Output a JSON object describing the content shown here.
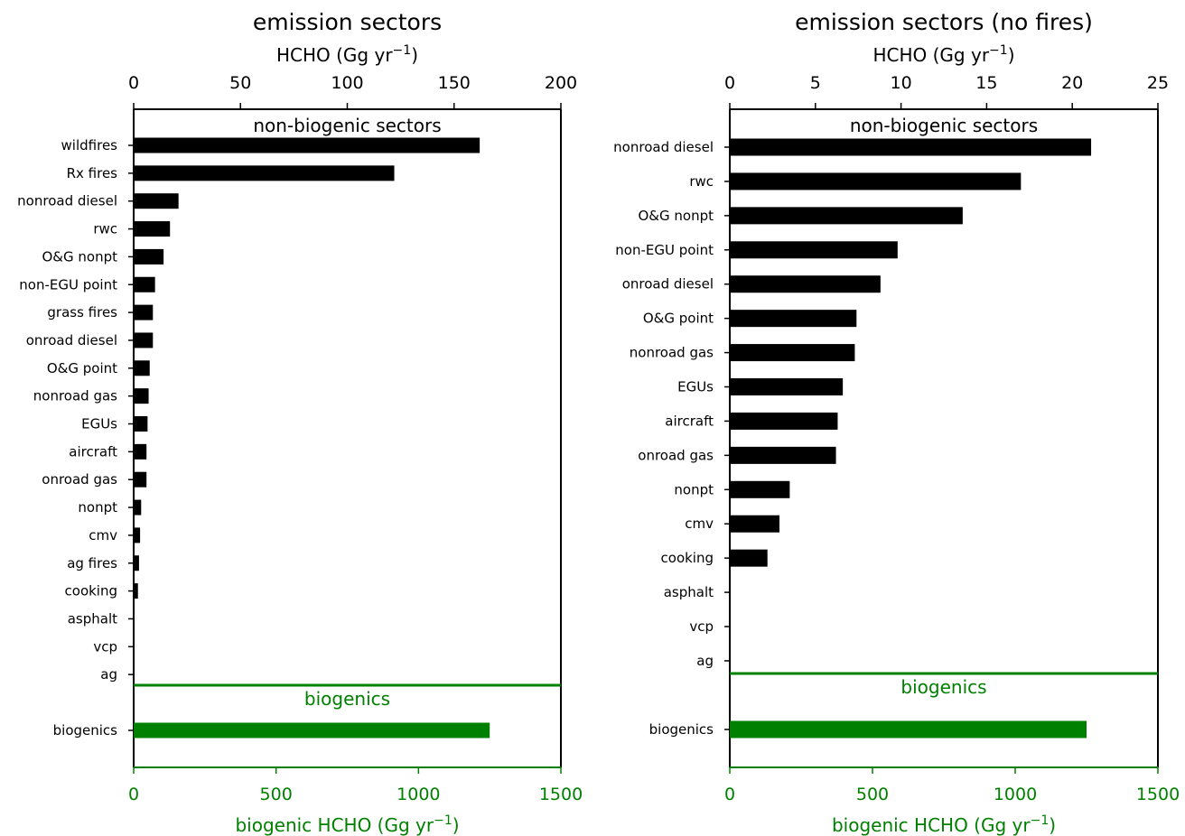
{
  "colors": {
    "bar": "#000000",
    "biogenic": "#008000",
    "axis": "#000000"
  },
  "chart_data": [
    {
      "type": "bar",
      "orientation": "horizontal",
      "title": "emission sectors",
      "top_axis": {
        "label_main": "HCHO (Gg yr",
        "label_sup": "−1",
        "label_end": ")",
        "ticks": [
          0,
          50,
          100,
          150,
          200
        ],
        "xlim": [
          0,
          200
        ]
      },
      "bottom_axis": {
        "label_main": "biogenic HCHO (Gg yr",
        "label_sup": "−1",
        "label_end": ")",
        "ticks": [
          0,
          500,
          1000,
          1500
        ],
        "xlim": [
          0,
          1500
        ]
      },
      "section_label": "non-biogenic sectors",
      "biogenic_label": "biogenics",
      "categories": [
        "wildfires",
        "Rx fires",
        "nonroad diesel",
        "rwc",
        "O&G nonpt",
        "non-EGU point",
        "grass fires",
        "onroad diesel",
        "O&G point",
        "nonroad gas",
        "EGUs",
        "aircraft",
        "onroad gas",
        "nonpt",
        "cmv",
        "ag fires",
        "cooking",
        "asphalt",
        "vcp",
        "ag"
      ],
      "values": [
        162,
        122,
        21,
        17,
        14,
        10,
        9,
        9,
        7.5,
        7,
        6.5,
        6,
        6,
        3.5,
        3,
        2.5,
        2,
        0.2,
        0.2,
        0.2
      ],
      "biogenic": {
        "category": "biogenics",
        "value": 1250
      }
    },
    {
      "type": "bar",
      "orientation": "horizontal",
      "title": "emission sectors (no fires)",
      "top_axis": {
        "label_main": "HCHO (Gg yr",
        "label_sup": "−1",
        "label_end": ")",
        "ticks": [
          0,
          5,
          10,
          15,
          20,
          25
        ],
        "xlim": [
          0,
          25
        ]
      },
      "bottom_axis": {
        "label_main": "biogenic HCHO (Gg yr",
        "label_sup": "−1",
        "label_end": ")",
        "ticks": [
          0,
          500,
          1000,
          1500
        ],
        "xlim": [
          0,
          1500
        ]
      },
      "section_label": "non-biogenic sectors",
      "biogenic_label": "biogenics",
      "categories": [
        "nonroad diesel",
        "rwc",
        "O&G nonpt",
        "non-EGU point",
        "onroad diesel",
        "O&G point",
        "nonroad gas",
        "EGUs",
        "aircraft",
        "onroad gas",
        "nonpt",
        "cmv",
        "cooking",
        "asphalt",
        "vcp",
        "ag"
      ],
      "values": [
        21.1,
        17.0,
        13.6,
        9.8,
        8.8,
        7.4,
        7.3,
        6.6,
        6.3,
        6.2,
        3.5,
        2.9,
        2.2,
        0,
        0,
        0
      ],
      "biogenic": {
        "category": "biogenics",
        "value": 1250
      }
    }
  ]
}
